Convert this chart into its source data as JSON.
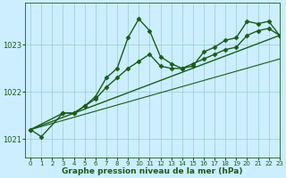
{
  "bg_color": "#cceeff",
  "grid_color": "#99cccc",
  "line_color": "#1a5c1a",
  "title": "Graphe pression niveau de la mer (hPa)",
  "xlim": [
    -0.5,
    23
  ],
  "ylim": [
    1020.6,
    1023.9
  ],
  "yticks": [
    1021,
    1022,
    1023
  ],
  "xticks": [
    0,
    1,
    2,
    3,
    4,
    5,
    6,
    7,
    8,
    9,
    10,
    11,
    12,
    13,
    14,
    15,
    16,
    17,
    18,
    19,
    20,
    21,
    22,
    23
  ],
  "series": [
    {
      "x": [
        0,
        1,
        3,
        4,
        5,
        6,
        7,
        8,
        9,
        10,
        11,
        12,
        13,
        14,
        15,
        16,
        17,
        18,
        19,
        20,
        21,
        22,
        23
      ],
      "y": [
        1021.2,
        1021.05,
        1021.55,
        1021.55,
        1021.7,
        1021.9,
        1022.3,
        1022.5,
        1023.15,
        1023.55,
        1023.3,
        1022.75,
        1022.6,
        1022.5,
        1022.55,
        1022.85,
        1022.95,
        1023.1,
        1023.15,
        1023.5,
        1023.45,
        1023.5,
        1023.2
      ],
      "linestyle": "-",
      "marker": "D",
      "markersize": 2.5,
      "linewidth": 1.0
    },
    {
      "x": [
        0,
        3,
        4,
        5,
        6,
        7,
        8,
        9,
        10,
        11,
        12,
        13,
        14,
        15,
        16,
        17,
        18,
        19,
        20,
        21,
        22,
        23
      ],
      "y": [
        1021.2,
        1021.55,
        1021.55,
        1021.7,
        1021.85,
        1022.1,
        1022.3,
        1022.5,
        1022.65,
        1022.8,
        1022.55,
        1022.5,
        1022.5,
        1022.6,
        1022.7,
        1022.8,
        1022.9,
        1022.95,
        1023.2,
        1023.3,
        1023.35,
        1023.2
      ],
      "linestyle": "-",
      "marker": "D",
      "markersize": 2.5,
      "linewidth": 1.0
    },
    {
      "x": [
        0,
        23
      ],
      "y": [
        1021.2,
        1023.2
      ],
      "linestyle": "-",
      "marker": null,
      "markersize": 0,
      "linewidth": 1.0
    },
    {
      "x": [
        0,
        23
      ],
      "y": [
        1021.2,
        1022.7
      ],
      "linestyle": "-",
      "marker": null,
      "markersize": 0,
      "linewidth": 0.8
    }
  ]
}
